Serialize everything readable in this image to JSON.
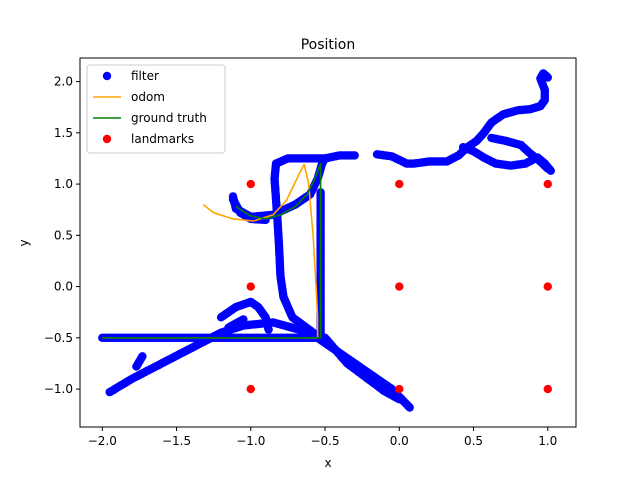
{
  "chart_data": {
    "type": "scatter",
    "title": "Position",
    "xlabel": "x",
    "ylabel": "y",
    "xlim": [
      -2.15,
      1.19
    ],
    "ylim": [
      -1.37,
      2.23
    ],
    "xticks": [
      -2.0,
      -1.5,
      -1.0,
      -0.5,
      0.0,
      0.5,
      1.0
    ],
    "xtick_labels": [
      "−2.0",
      "−1.5",
      "−1.0",
      "−0.5",
      "0.0",
      "0.5",
      "1.0"
    ],
    "yticks": [
      -1.0,
      -0.5,
      0.0,
      0.5,
      1.0,
      1.5,
      2.0
    ],
    "ytick_labels": [
      "−1.0",
      "−0.5",
      "0.0",
      "0.5",
      "1.0",
      "1.5",
      "2.0"
    ],
    "grid": false,
    "legend_position": "upper left",
    "legend": [
      {
        "label": "filter",
        "kind": "marker",
        "color": "#0000ff"
      },
      {
        "label": "odom",
        "kind": "line",
        "color": "#ffa500"
      },
      {
        "label": "ground truth",
        "kind": "line",
        "color": "#008000"
      },
      {
        "label": "landmarks",
        "kind": "marker",
        "color": "#ff0000"
      }
    ],
    "series": [
      {
        "name": "filter",
        "kind": "scatter",
        "color": "#0000ff",
        "paths": [
          [
            [
              -2.0,
              -0.5
            ],
            [
              -1.5,
              -0.5
            ],
            [
              -1.0,
              -0.5
            ],
            [
              -0.55,
              -0.5
            ],
            [
              -0.5,
              -0.55
            ],
            [
              -0.35,
              -0.7
            ],
            [
              -0.2,
              -0.85
            ],
            [
              -0.05,
              -1.0
            ],
            [
              0.05,
              -1.15
            ],
            [
              0.07,
              -1.18
            ]
          ],
          [
            [
              -1.95,
              -1.03
            ],
            [
              -1.8,
              -0.9
            ],
            [
              -1.6,
              -0.75
            ],
            [
              -1.4,
              -0.6
            ],
            [
              -1.2,
              -0.45
            ],
            [
              -1.05,
              -0.38
            ],
            [
              -0.85,
              -0.35
            ],
            [
              -0.6,
              -0.45
            ],
            [
              -0.5,
              -0.5
            ],
            [
              -0.35,
              -0.75
            ],
            [
              -0.1,
              -1.02
            ],
            [
              0.0,
              -1.1
            ]
          ],
          [
            [
              -1.77,
              -0.78
            ],
            [
              -1.73,
              -0.68
            ]
          ],
          [
            [
              -1.15,
              -0.4
            ],
            [
              -1.05,
              -0.32
            ]
          ],
          [
            [
              -0.58,
              -0.45
            ],
            [
              -0.72,
              -0.3
            ],
            [
              -0.78,
              -0.1
            ],
            [
              -0.8,
              0.1
            ],
            [
              -0.81,
              0.4
            ],
            [
              -0.82,
              0.65
            ],
            [
              -0.83,
              0.85
            ],
            [
              -0.84,
              1.05
            ],
            [
              -0.83,
              1.2
            ],
            [
              -0.75,
              1.25
            ],
            [
              -0.6,
              1.25
            ],
            [
              -0.5,
              1.25
            ],
            [
              -0.4,
              1.28
            ],
            [
              -0.3,
              1.28
            ]
          ],
          [
            [
              -0.88,
              -0.42
            ],
            [
              -0.9,
              -0.3
            ],
            [
              -0.95,
              -0.2
            ],
            [
              -1.0,
              -0.15
            ],
            [
              -1.1,
              -0.2
            ],
            [
              -1.2,
              -0.3
            ]
          ],
          [
            [
              -1.12,
              0.88
            ],
            [
              -1.1,
              0.76
            ],
            [
              -1.0,
              0.68
            ],
            [
              -0.85,
              0.7
            ],
            [
              -0.7,
              0.8
            ],
            [
              -0.6,
              0.9
            ],
            [
              -0.55,
              1.05
            ],
            [
              -0.52,
              1.2
            ],
            [
              -0.5,
              1.25
            ]
          ],
          [
            [
              -1.12,
              0.85
            ],
            [
              -1.07,
              0.72
            ],
            [
              -1.0,
              0.66
            ],
            [
              -0.9,
              0.65
            ]
          ],
          [
            [
              -0.53,
              0.92
            ],
            [
              -0.53,
              0.6
            ],
            [
              -0.53,
              0.2
            ],
            [
              -0.53,
              -0.2
            ],
            [
              -0.53,
              -0.45
            ]
          ],
          [
            [
              -0.15,
              1.29
            ],
            [
              -0.05,
              1.27
            ],
            [
              0.05,
              1.2
            ],
            [
              0.1,
              1.2
            ],
            [
              0.2,
              1.22
            ],
            [
              0.32,
              1.22
            ],
            [
              0.4,
              1.28
            ],
            [
              0.45,
              1.35
            ],
            [
              0.52,
              1.42
            ],
            [
              0.57,
              1.5
            ],
            [
              0.62,
              1.6
            ],
            [
              0.7,
              1.68
            ],
            [
              0.8,
              1.72
            ],
            [
              0.88,
              1.73
            ],
            [
              0.95,
              1.76
            ],
            [
              0.98,
              1.82
            ],
            [
              0.98,
              1.92
            ],
            [
              0.95,
              2.03
            ],
            [
              0.97,
              2.08
            ],
            [
              1.0,
              2.04
            ]
          ],
          [
            [
              0.43,
              1.36
            ],
            [
              0.5,
              1.32
            ],
            [
              0.58,
              1.25
            ],
            [
              0.65,
              1.2
            ],
            [
              0.75,
              1.18
            ],
            [
              0.85,
              1.2
            ],
            [
              0.93,
              1.26
            ],
            [
              0.98,
              1.2
            ],
            [
              1.02,
              1.13
            ]
          ],
          [
            [
              0.62,
              1.45
            ],
            [
              0.72,
              1.42
            ],
            [
              0.82,
              1.38
            ],
            [
              0.88,
              1.3
            ],
            [
              0.95,
              1.22
            ],
            [
              1.0,
              1.15
            ]
          ]
        ]
      },
      {
        "name": "odom",
        "kind": "line",
        "color": "#ffa500",
        "points": [
          [
            -1.32,
            0.8
          ],
          [
            -1.25,
            0.72
          ],
          [
            -1.12,
            0.66
          ],
          [
            -0.98,
            0.64
          ],
          [
            -0.85,
            0.7
          ],
          [
            -0.76,
            0.84
          ],
          [
            -0.7,
            1.02
          ],
          [
            -0.66,
            1.14
          ],
          [
            -0.64,
            1.19
          ],
          [
            -0.61,
            1.0
          ],
          [
            -0.58,
            0.5
          ],
          [
            -0.56,
            0.0
          ],
          [
            -0.55,
            -0.3
          ],
          [
            -0.55,
            -0.5
          ],
          [
            -1.0,
            -0.5
          ],
          [
            -1.5,
            -0.5
          ],
          [
            -2.0,
            -0.5
          ]
        ]
      },
      {
        "name": "ground truth",
        "kind": "line",
        "color": "#008000",
        "points": [
          [
            -1.1,
            0.78
          ],
          [
            -1.0,
            0.69
          ],
          [
            -0.9,
            0.66
          ],
          [
            -0.8,
            0.7
          ],
          [
            -0.7,
            0.78
          ],
          [
            -0.62,
            0.9
          ],
          [
            -0.57,
            1.05
          ],
          [
            -0.53,
            1.2
          ],
          [
            -0.53,
            0.8
          ],
          [
            -0.53,
            0.2
          ],
          [
            -0.53,
            -0.5
          ],
          [
            -1.0,
            -0.5
          ],
          [
            -1.5,
            -0.5
          ],
          [
            -2.0,
            -0.5
          ]
        ]
      },
      {
        "name": "landmarks",
        "kind": "scatter",
        "color": "#ff0000",
        "points": [
          [
            -1.0,
            1.0
          ],
          [
            0.0,
            1.0
          ],
          [
            1.0,
            1.0
          ],
          [
            -1.0,
            0.0
          ],
          [
            0.0,
            0.0
          ],
          [
            1.0,
            0.0
          ],
          [
            -1.0,
            -1.0
          ],
          [
            0.0,
            -1.0
          ],
          [
            1.0,
            -1.0
          ]
        ]
      }
    ]
  }
}
